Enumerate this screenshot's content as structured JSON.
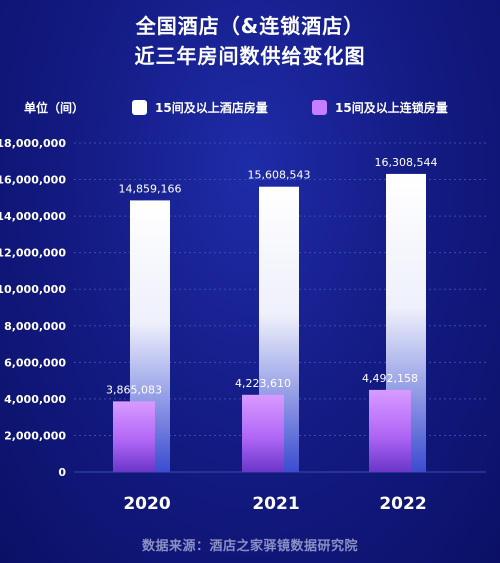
{
  "chart_data": {
    "type": "bar",
    "title_line1": "全国酒店（&连锁酒店）",
    "title_line2": "近三年房间数供给变化图",
    "unit_label": "单位（间）",
    "categories": [
      "2020",
      "2021",
      "2022"
    ],
    "series": [
      {
        "name": "15间及以上酒店房量",
        "values": [
          14859166,
          15608543,
          16308544
        ],
        "value_labels": [
          "14,859,166",
          "15,608,543",
          "16,308,544"
        ],
        "color": "#ffffff"
      },
      {
        "name": "15间及以上连锁房量",
        "values": [
          3865083,
          4223610,
          4492158
        ],
        "value_labels": [
          "3,865,083",
          "4,223,610",
          "4,492,158"
        ],
        "color": "#c77dff"
      }
    ],
    "ylim": [
      0,
      18000000
    ],
    "yticks": [
      0,
      2000000,
      4000000,
      6000000,
      8000000,
      10000000,
      12000000,
      14000000,
      16000000,
      18000000
    ],
    "ytick_labels": [
      "0",
      "2,000,000",
      "4,000,000",
      "6,000,000",
      "8,000,000",
      "10,000,000",
      "12,000,000",
      "14,000,000",
      "16,000,000",
      "18,000,000"
    ],
    "grid": true
  },
  "source": "数据来源：酒店之家驿镜数据研究院",
  "colors": {
    "background": "#141c86",
    "hotel_bar": "#ffffff",
    "chain_bar": "#c77dff",
    "grid": "#3a4bb0"
  }
}
